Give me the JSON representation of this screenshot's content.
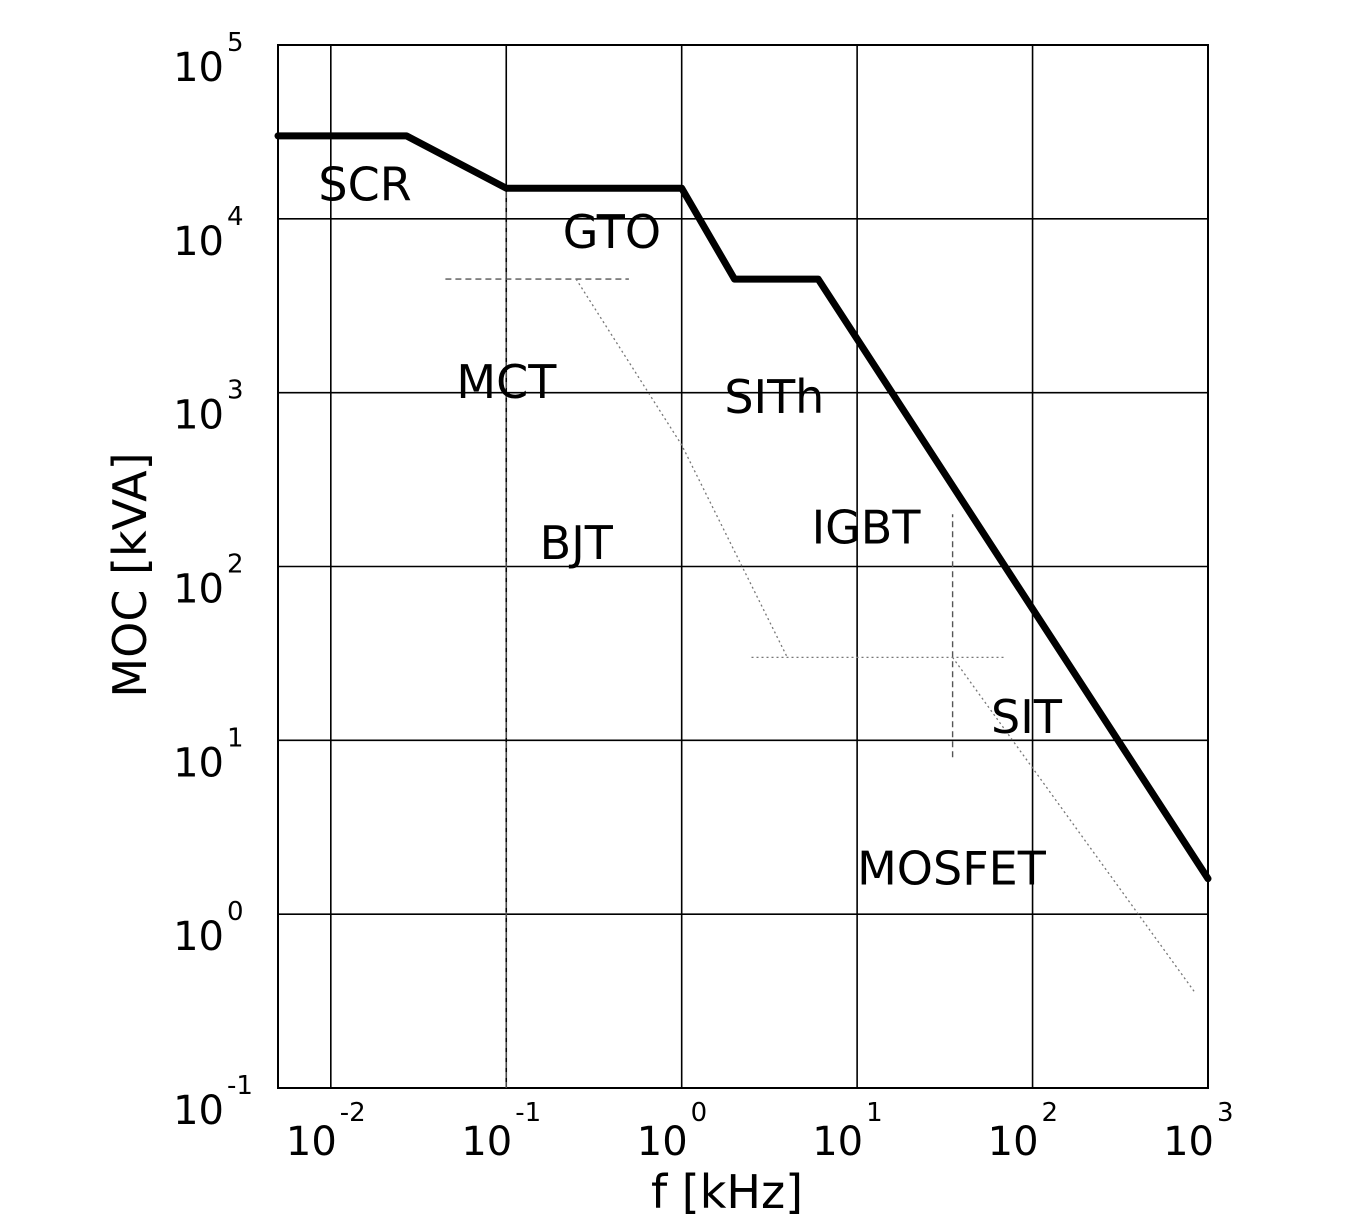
{
  "chart_data": {
    "type": "line",
    "title": "",
    "xlabel": "f [kHz]",
    "ylabel": "MOC  [kVA]",
    "x_scale": "log",
    "y_scale": "log",
    "xlim": [
      0.005,
      1000
    ],
    "ylim": [
      0.1,
      100000
    ],
    "grid": true,
    "x_ticks": [
      {
        "base": "10",
        "exp": "-2",
        "value": 0.01
      },
      {
        "base": "10",
        "exp": "-1",
        "value": 0.1
      },
      {
        "base": "10",
        "exp": "0",
        "value": 1
      },
      {
        "base": "10",
        "exp": "1",
        "value": 10
      },
      {
        "base": "10",
        "exp": "2",
        "value": 100
      },
      {
        "base": "10",
        "exp": "3",
        "value": 1000
      }
    ],
    "y_ticks": [
      {
        "base": "10",
        "exp": "5",
        "value": 100000
      },
      {
        "base": "10",
        "exp": "4",
        "value": 10000
      },
      {
        "base": "10",
        "exp": "3",
        "value": 1000
      },
      {
        "base": "10",
        "exp": "2",
        "value": 100
      },
      {
        "base": "10",
        "exp": "1",
        "value": 10
      },
      {
        "base": "10",
        "exp": "0",
        "value": 1
      },
      {
        "base": "10",
        "exp": "-1",
        "value": 0.1
      }
    ],
    "series": [
      {
        "style": "bold-solid",
        "x": [
          0.005,
          0.027,
          0.1,
          1,
          2,
          6,
          1000
        ],
        "y": [
          30000,
          30000,
          15000,
          15000,
          4500,
          4500,
          1.6
        ]
      },
      {
        "style": "dashed",
        "x": [
          0.1,
          0.1
        ],
        "y": [
          0.1,
          15000
        ]
      },
      {
        "style": "dashed",
        "x": [
          0.045,
          0.5
        ],
        "y": [
          4500,
          4500
        ]
      },
      {
        "style": "dotted",
        "x": [
          0.25,
          1,
          4
        ],
        "y": [
          4500,
          500,
          30
        ]
      },
      {
        "style": "dashed",
        "x": [
          35,
          35
        ],
        "y": [
          8,
          200
        ]
      },
      {
        "style": "dotted",
        "x": [
          2.5,
          70
        ],
        "y": [
          30,
          30
        ]
      },
      {
        "style": "dotted",
        "x": [
          35,
          850
        ],
        "y": [
          30,
          0.35
        ]
      }
    ],
    "annotations": [
      {
        "text": "SCR",
        "x": 0.0085,
        "y": 15000
      },
      {
        "text": "GTO",
        "x": 0.21,
        "y": 8000
      },
      {
        "text": "MCT",
        "x": 0.052,
        "y": 1100
      },
      {
        "text": "SITh",
        "x": 1.75,
        "y": 900
      },
      {
        "text": "BJT",
        "x": 0.155,
        "y": 130
      },
      {
        "text": "IGBT",
        "x": 5.5,
        "y": 160
      },
      {
        "text": "SIT",
        "x": 58,
        "y": 13
      },
      {
        "text": "MOSFET",
        "x": 10,
        "y": 1.75
      }
    ]
  }
}
